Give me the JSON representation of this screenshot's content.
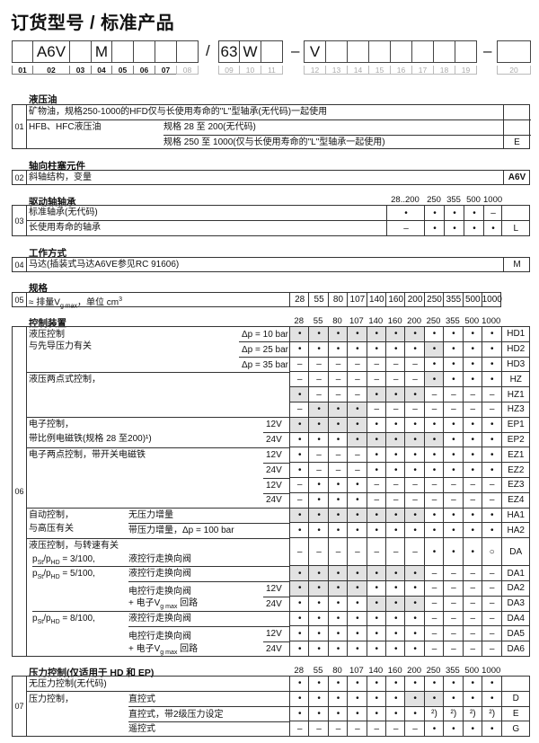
{
  "title": "订货型号 / 标准产品",
  "order_code": {
    "boxes": [
      {
        "num": "01",
        "value": "",
        "active": true
      },
      {
        "num": "02",
        "value": "A6V",
        "active": true
      },
      {
        "num": "03",
        "value": "",
        "active": true
      },
      {
        "num": "04",
        "value": "M",
        "active": true
      },
      {
        "num": "05",
        "value": "",
        "active": true
      },
      {
        "num": "06",
        "value": "",
        "active": true
      },
      {
        "num": "07",
        "value": "",
        "active": true
      },
      {
        "num": "08",
        "value": "",
        "active": false
      },
      {
        "num": "09",
        "value": "63",
        "active": false
      },
      {
        "num": "10",
        "value": "W",
        "active": false
      },
      {
        "num": "11",
        "value": "",
        "active": false
      },
      {
        "num": "12",
        "value": "V",
        "active": false
      },
      {
        "num": "13",
        "value": "",
        "active": false
      },
      {
        "num": "14",
        "value": "",
        "active": false
      },
      {
        "num": "15",
        "value": "",
        "active": false
      },
      {
        "num": "16",
        "value": "",
        "active": false
      },
      {
        "num": "17",
        "value": "",
        "active": false
      },
      {
        "num": "18",
        "value": "",
        "active": false
      },
      {
        "num": "19",
        "value": "",
        "active": false
      },
      {
        "num": "20",
        "value": "",
        "active": false
      }
    ],
    "separators": [
      "/",
      "–",
      "–"
    ]
  },
  "sizes": [
    "28",
    "55",
    "80",
    "107",
    "140",
    "160",
    "200",
    "250",
    "355",
    "500",
    "1000"
  ],
  "s01": {
    "num": "01",
    "heading": "液压油",
    "row1": "矿物油，规格250-1000的HFD仅与长使用寿命的\"L\"型轴承(无代码)一起使用",
    "row2_label": "HFB、HFC液压油",
    "row2_sub": "规格 28 至 200(无代码)",
    "row3_sub": "规格 250 至 1000(仅与长使用寿命的\"L\"型轴承一起使用)",
    "row3_code": "E"
  },
  "s02": {
    "num": "02",
    "heading": "轴向柱塞元件",
    "label": "斜轴结构，变量",
    "code": "A6V"
  },
  "s03": {
    "num": "03",
    "heading": "驱动轴轴承",
    "size_headers": [
      "28..200",
      "250",
      "355",
      "500",
      "1000"
    ],
    "rows": [
      {
        "label": "标准轴承(无代码)",
        "values": [
          "•",
          "•",
          "•",
          "•",
          "–"
        ],
        "code": ""
      },
      {
        "label": "长使用寿命的轴承",
        "values": [
          "–",
          "•",
          "•",
          "•",
          "•"
        ],
        "code": "L"
      }
    ]
  },
  "s04": {
    "num": "04",
    "heading": "工作方式",
    "label": "马达(插装式马达A6VE参见RC 91606)",
    "code": "M"
  },
  "s05": {
    "num": "05",
    "heading": "规格",
    "label_pre": "≈ 排量V",
    "label_sub": "g max",
    "label_mid": "，单位 cm",
    "label_sup": "3"
  },
  "s06": {
    "num": "06",
    "heading": "控制装置",
    "labels": {
      "hd_1": "液压控制",
      "hd_2": "与先导压力有关",
      "dp10": "Δp = 10 bar",
      "dp25": "Δp = 25 bar",
      "dp35": "Δp = 35 bar",
      "hz": "液压两点式控制，",
      "ep_1": "电子控制，",
      "ep_2": "带比例电磁铁(规格 28 至200)¹)",
      "ez": "电子两点控制，带开关电磁铁",
      "v12": "12V",
      "v24": "24V",
      "ha_1": "自动控制，",
      "ha_2": "与高压有关",
      "ha1_sub": "无压力增量",
      "ha2_sub": "带压力增量，Δp = 100 bar",
      "da": "液压控制，与转速有关",
      "p": "p",
      "st": "St",
      "slash_p": "/p",
      "hd": "HD",
      "ratio_3": " = 3/100,",
      "ratio_5": " = 5/100,",
      "ratio_8": " = 8/100,",
      "hyd_valve": "液控行走换向阀",
      "el_valve": "电控行走换向阀",
      "circuit_pre": "+ 电子V",
      "circuit_sub": "g max",
      "circuit_post": " 回路"
    },
    "rows": [
      {
        "code": "HD1",
        "values": "•••••••••••",
        "shaded": [
          0,
          1,
          2,
          3,
          4,
          5,
          6
        ]
      },
      {
        "code": "HD2",
        "values": "•••••••••••",
        "shaded": [
          7
        ]
      },
      {
        "code": "HD3",
        "values": "–––––––••••",
        "shaded": []
      },
      {
        "code": "HZ",
        "values": "–––––––••••",
        "shaded": [
          7
        ]
      },
      {
        "code": "HZ1",
        "values": "•–––•••––––",
        "shaded": [
          0,
          4,
          5,
          6
        ]
      },
      {
        "code": "HZ3",
        "values": "–•••–––––––",
        "shaded": [
          1,
          2,
          3
        ]
      },
      {
        "code": "EP1",
        "values": "•••••••••••",
        "shaded": [
          0,
          1,
          2,
          3
        ]
      },
      {
        "code": "EP2",
        "values": "•••••••••••",
        "shaded": [
          3,
          4,
          5,
          6,
          7
        ]
      },
      {
        "code": "EZ1",
        "values": "•–––•••••••",
        "shaded": []
      },
      {
        "code": "EZ2",
        "values": "•–––•••••••",
        "shaded": []
      },
      {
        "code": "EZ3",
        "values": "–•••–––––––",
        "shaded": []
      },
      {
        "code": "EZ4",
        "values": "–•••–––––––",
        "shaded": []
      },
      {
        "code": "HA1",
        "values": "•••••••••••",
        "shaded": [
          0,
          1,
          2,
          3,
          4,
          5,
          6
        ]
      },
      {
        "code": "HA2",
        "values": "•••••••••••",
        "shaded": []
      },
      {
        "code": "DA",
        "values": "–––––––•••○",
        "shaded": []
      },
      {
        "code": "DA1",
        "values": "•••••••––––",
        "shaded": [
          0,
          1,
          2,
          3,
          4,
          5,
          6
        ]
      },
      {
        "code": "DA2",
        "values": "•••••••––––",
        "shaded": [
          0,
          1,
          2,
          3
        ]
      },
      {
        "code": "DA3",
        "values": "•••••••––––",
        "shaded": [
          4,
          5,
          6
        ]
      },
      {
        "code": "DA4",
        "values": "•••••••––––",
        "shaded": []
      },
      {
        "code": "DA5",
        "values": "•••••••––––",
        "shaded": []
      },
      {
        "code": "DA6",
        "values": "•••••••––––",
        "shaded": []
      }
    ]
  },
  "s07": {
    "num": "07",
    "heading": "压力控制(仅适用于 HD 和 EP)",
    "labels": {
      "none": "无压力控制(无代码)",
      "pc": "压力控制，",
      "direct": "直控式",
      "direct2": "直控式，带2级压力设定",
      "remote": "遥控式"
    },
    "rows": [
      {
        "code": "",
        "values": [
          "•",
          "•",
          "•",
          "•",
          "•",
          "•",
          "•",
          "•",
          "•",
          "•",
          "•"
        ],
        "shaded": []
      },
      {
        "code": "D",
        "values": [
          "•",
          "•",
          "•",
          "•",
          "•",
          "•",
          "•",
          "•",
          "•",
          "•",
          "•"
        ],
        "shaded": [
          6,
          7
        ]
      },
      {
        "code": "E",
        "values": [
          "•",
          "•",
          "•",
          "•",
          "•",
          "•",
          "•",
          "²)",
          "²)",
          "²)",
          "²)"
        ],
        "shaded": []
      },
      {
        "code": "G",
        "values": [
          "–",
          "–",
          "–",
          "–",
          "–",
          "–",
          "–",
          "•",
          "•",
          "•",
          "•"
        ],
        "shaded": []
      }
    ]
  }
}
